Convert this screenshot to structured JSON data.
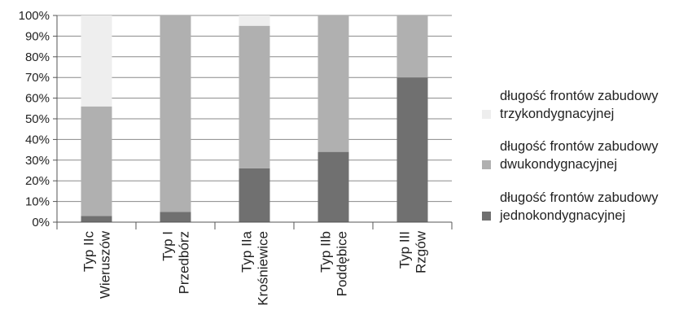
{
  "chart_data": {
    "type": "bar",
    "stacked": true,
    "normalized": true,
    "categories": [
      [
        "Typ IIc",
        "Wieruszów"
      ],
      [
        "Typ I",
        "Przedbórz"
      ],
      [
        "Typ IIa",
        "Krośniewice"
      ],
      [
        "Typ IIb",
        "Poddębice"
      ],
      [
        "Typ III",
        "Rzgów"
      ]
    ],
    "series": [
      {
        "name": "długość frontów zabudowy jednokondygnacyjnej",
        "color": "#707070",
        "values": [
          3,
          5,
          26,
          34,
          70
        ]
      },
      {
        "name": "długość frontów zabudowy dwukondygnacyjnej",
        "color": "#b0b0b0",
        "values": [
          53,
          95,
          69,
          66,
          30
        ]
      },
      {
        "name": "długość frontów zabudowy trzykondygnacyjnej",
        "color": "#eeeeee",
        "values": [
          44,
          0,
          5,
          0,
          0
        ]
      }
    ],
    "y_ticks": [
      "0%",
      "10%",
      "20%",
      "30%",
      "40%",
      "50%",
      "60%",
      "70%",
      "80%",
      "90%",
      "100%"
    ],
    "ylim": [
      0,
      100
    ],
    "grid": true,
    "legend_position": "right",
    "legend": [
      [
        "długość frontów zabudowy",
        "trzykondygnacyjnej"
      ],
      [
        "długość frontów zabudowy",
        "dwukondygnacyjnej"
      ],
      [
        "długość frontów zabudowy",
        "jednokondygnacyjnej"
      ]
    ]
  }
}
